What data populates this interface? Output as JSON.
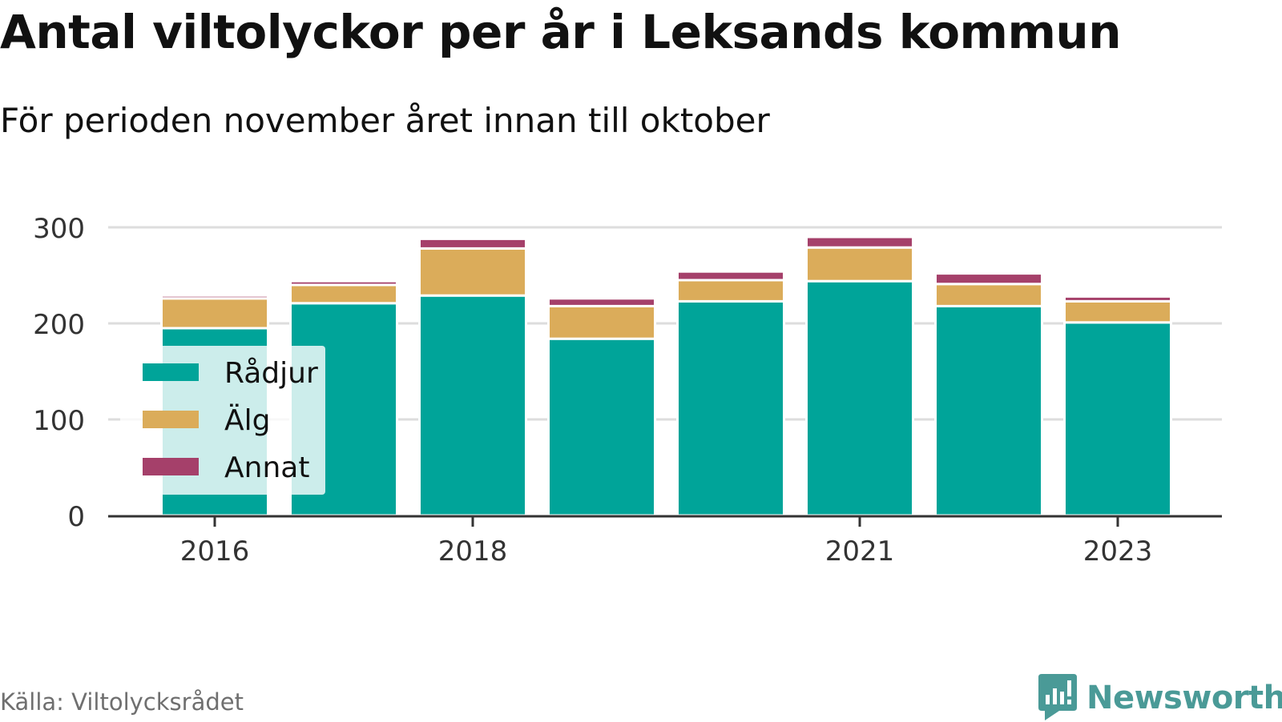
{
  "header": {
    "title": "Antal viltolyckor per år i Leksands kommun",
    "subtitle": "För perioden november året innan till oktober"
  },
  "footer": {
    "source": "Källa: Viltolycksrådet",
    "brand": "Newsworthy",
    "brand_icon": "newsworthy-logo-icon"
  },
  "colors": {
    "Rådjur": "#00a499",
    "Älg": "#dbac5a",
    "Annat": "#a5406a",
    "grid": "#dddddd",
    "axis": "#333333",
    "brand": "#4a9a97"
  },
  "chart_data": {
    "type": "bar",
    "stacked": true,
    "categories": [
      "2016",
      "2017",
      "2018",
      "2019",
      "2020",
      "2021",
      "2022",
      "2023"
    ],
    "x_tick_labels": [
      "2016",
      "2018",
      "2021",
      "2023"
    ],
    "series": [
      {
        "name": "Rådjur",
        "values": [
          195,
          221,
          229,
          184,
          223,
          244,
          218,
          201
        ]
      },
      {
        "name": "Älg",
        "values": [
          31,
          19,
          49,
          34,
          22,
          35,
          23,
          22
        ]
      },
      {
        "name": "Annat",
        "values": [
          3,
          4,
          10,
          8,
          9,
          11,
          11,
          5
        ]
      }
    ],
    "y_ticks": [
      0,
      100,
      200,
      300
    ],
    "ylim": [
      0,
      310
    ],
    "grid": true,
    "legend_position": "left"
  }
}
